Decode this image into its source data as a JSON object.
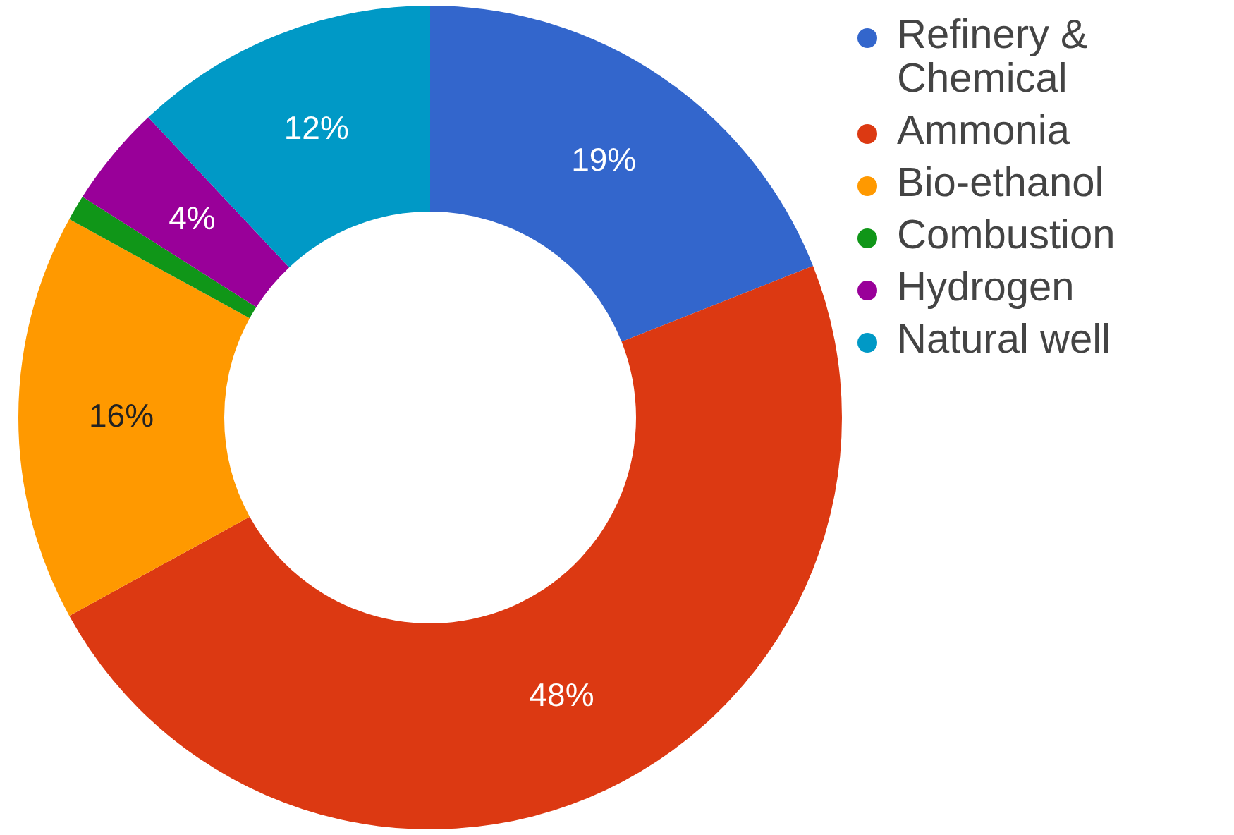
{
  "chart_data": {
    "type": "donut",
    "categories": [
      "Refinery & Chemical",
      "Ammonia",
      "Bio-ethanol",
      "Combustion",
      "Hydrogen",
      "Natural well"
    ],
    "values": [
      19,
      48,
      16,
      1,
      4,
      12
    ],
    "colors": [
      "#3366cc",
      "#dc3912",
      "#ff9900",
      "#109618",
      "#990099",
      "#0099c6"
    ],
    "value_labels": [
      "19%",
      "48%",
      "16%",
      null,
      "4%",
      "12%"
    ],
    "legend": "right"
  }
}
